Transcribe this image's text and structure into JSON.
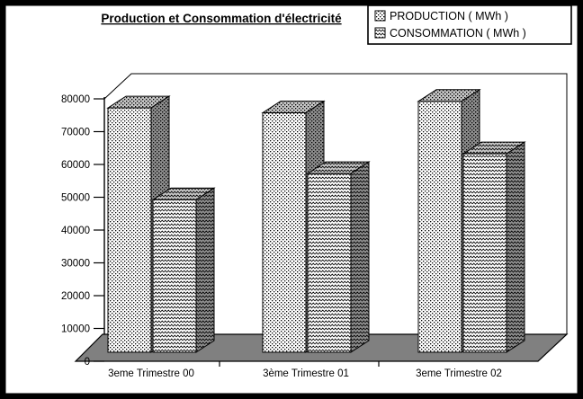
{
  "chart_data": {
    "type": "bar",
    "projection": "3d",
    "title": "Production et Consommation d'électricité",
    "categories": [
      "3eme Trimestre 00",
      "3ème Trimestre 01",
      "3eme Trimestre 02"
    ],
    "series": [
      {
        "name": "PRODUCTION ( MWh )",
        "pattern": "dots",
        "values": [
          74500,
          73000,
          76500
        ]
      },
      {
        "name": "CONSOMMATION ( MWh )",
        "pattern": "zigzag",
        "values": [
          46500,
          54500,
          60500
        ]
      }
    ],
    "xlabel": "",
    "ylabel": "",
    "ylim": [
      0,
      80000
    ],
    "ytick_step": 10000,
    "yticks": [
      0,
      10000,
      20000,
      30000,
      40000,
      50000,
      60000,
      70000,
      80000
    ],
    "legend_position": "top-right",
    "grid": false
  },
  "colors": {
    "background": "#ffffff",
    "frame": "#000000",
    "floor": "#808080",
    "pattern_fg": "#000000",
    "face_front_bg": "#ffffff",
    "face_top_bg": "#c6c6c6",
    "face_side_bg": "#8e8e8e"
  }
}
